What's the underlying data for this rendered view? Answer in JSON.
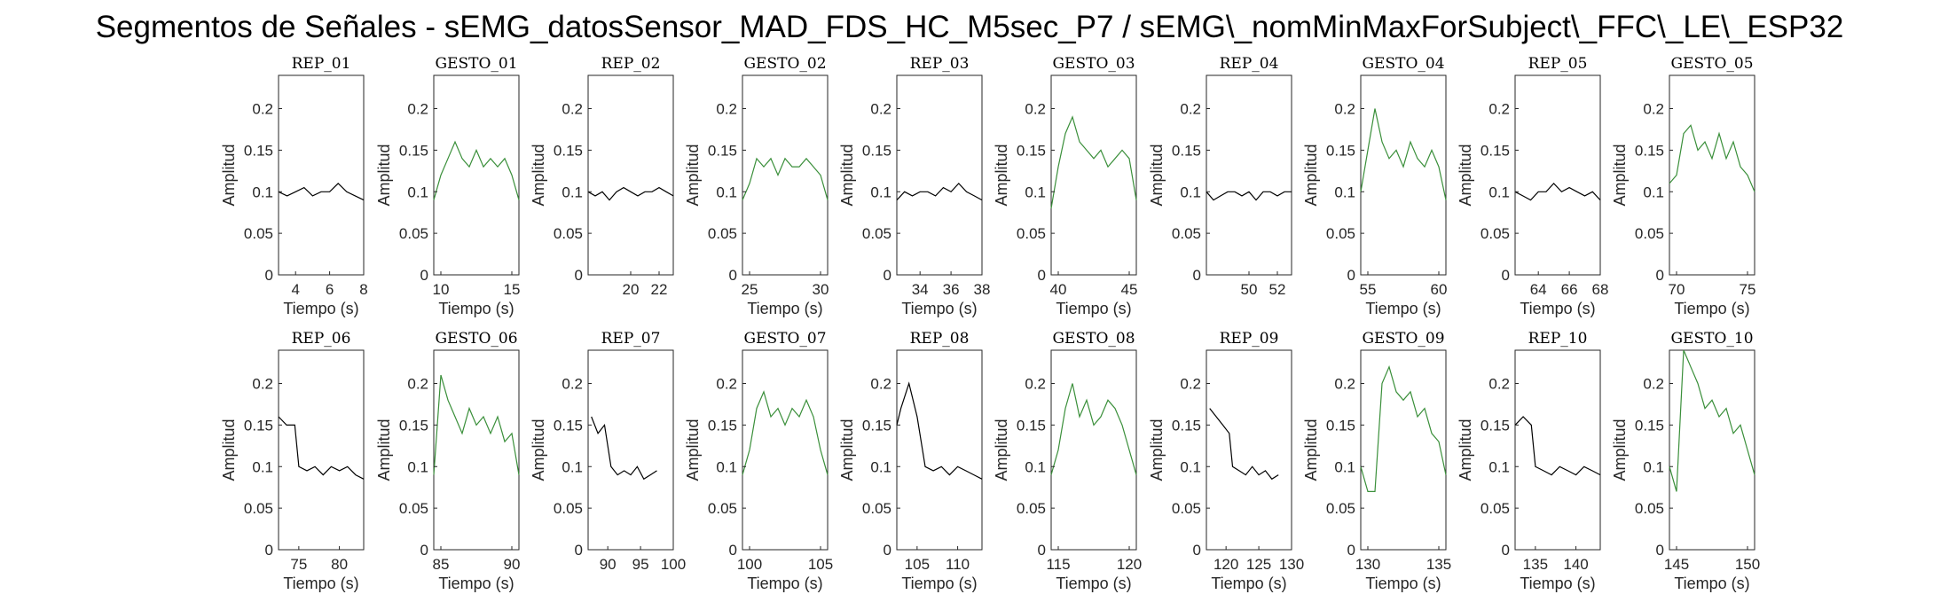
{
  "figure": {
    "title": "Segmentos de Señales - sEMG_datosSensor_MAD_FDS_HC_M5sec_P7 / sEMG\\_nomMinMaxForSubject\\_FFC\\_LE\\_ESP32"
  },
  "colors": {
    "rep": "#000000",
    "gesto": "#3a8f3a"
  },
  "chart_data": [
    {
      "type": "line",
      "title": "REP_01",
      "xlabel": "Tiempo (s)",
      "ylabel": "Amplitud",
      "xlim": [
        3,
        8
      ],
      "ylim": [
        0,
        0.24
      ],
      "xticks": [
        4,
        6,
        8
      ],
      "yticks": [
        0,
        0.05,
        0.1,
        0.15,
        0.2
      ],
      "series": [
        {
          "color": "#000000",
          "x": [
            3,
            3.5,
            4,
            4.5,
            5,
            5.5,
            6,
            6.5,
            7,
            7.5,
            8
          ],
          "y": [
            0.1,
            0.095,
            0.1,
            0.105,
            0.095,
            0.1,
            0.1,
            0.11,
            0.1,
            0.095,
            0.09
          ]
        }
      ]
    },
    {
      "type": "line",
      "title": "GESTO_01",
      "xlabel": "Tiempo (s)",
      "ylabel": "Amplitud",
      "xlim": [
        9.5,
        15.5
      ],
      "ylim": [
        0,
        0.24
      ],
      "xticks": [
        10,
        15
      ],
      "yticks": [
        0,
        0.05,
        0.1,
        0.15,
        0.2
      ],
      "series": [
        {
          "color": "#3a8f3a",
          "x": [
            9.5,
            10,
            10.5,
            11,
            11.5,
            12,
            12.5,
            13,
            13.5,
            14,
            14.5,
            15,
            15.5
          ],
          "y": [
            0.09,
            0.12,
            0.14,
            0.16,
            0.14,
            0.13,
            0.15,
            0.13,
            0.14,
            0.13,
            0.14,
            0.12,
            0.09
          ]
        }
      ]
    },
    {
      "type": "line",
      "title": "REP_02",
      "xlabel": "",
      "ylabel": "Amplitud",
      "xlim": [
        17,
        23
      ],
      "ylim": [
        0,
        0.24
      ],
      "xticks": [
        20,
        22
      ],
      "yticks": [
        0,
        0.05,
        0.1,
        0.15,
        0.2
      ],
      "series": [
        {
          "color": "#000000",
          "x": [
            17,
            17.5,
            18,
            18.5,
            19,
            19.5,
            20,
            20.5,
            21,
            21.5,
            22,
            22.5,
            23
          ],
          "y": [
            0.1,
            0.095,
            0.1,
            0.09,
            0.1,
            0.105,
            0.1,
            0.095,
            0.1,
            0.1,
            0.105,
            0.1,
            0.095
          ]
        }
      ]
    },
    {
      "type": "line",
      "title": "GESTO_02",
      "xlabel": "Tiempo (s)",
      "ylabel": "Amplitud",
      "xlim": [
        24.5,
        30.5
      ],
      "ylim": [
        0,
        0.24
      ],
      "xticks": [
        25,
        30
      ],
      "yticks": [
        0,
        0.05,
        0.1,
        0.15,
        0.2
      ],
      "series": [
        {
          "color": "#3a8f3a",
          "x": [
            24.5,
            25,
            25.5,
            26,
            26.5,
            27,
            27.5,
            28,
            28.5,
            29,
            29.5,
            30,
            30.5
          ],
          "y": [
            0.09,
            0.11,
            0.14,
            0.13,
            0.14,
            0.12,
            0.14,
            0.13,
            0.13,
            0.14,
            0.13,
            0.12,
            0.09
          ]
        }
      ]
    },
    {
      "type": "line",
      "title": "REP_03",
      "xlabel": "Tiempo (s)",
      "ylabel": "Amplitud",
      "xlim": [
        32.5,
        38
      ],
      "ylim": [
        0,
        0.24
      ],
      "xticks": [
        34,
        36,
        38
      ],
      "yticks": [
        0,
        0.05,
        0.1,
        0.15,
        0.2
      ],
      "series": [
        {
          "color": "#000000",
          "x": [
            32.5,
            33,
            33.5,
            34,
            34.5,
            35,
            35.5,
            36,
            36.5,
            37,
            37.5,
            38
          ],
          "y": [
            0.09,
            0.1,
            0.095,
            0.1,
            0.1,
            0.095,
            0.105,
            0.1,
            0.11,
            0.1,
            0.095,
            0.09
          ]
        }
      ]
    },
    {
      "type": "line",
      "title": "GESTO_03",
      "xlabel": "Tiempo (s)",
      "ylabel": "Amplitud",
      "xlim": [
        39.5,
        45.5
      ],
      "ylim": [
        0,
        0.24
      ],
      "xticks": [
        40,
        45
      ],
      "yticks": [
        0,
        0.05,
        0.1,
        0.15,
        0.2
      ],
      "series": [
        {
          "color": "#3a8f3a",
          "x": [
            39.5,
            40,
            40.5,
            41,
            41.5,
            42,
            42.5,
            43,
            43.5,
            44,
            44.5,
            45,
            45.5
          ],
          "y": [
            0.08,
            0.13,
            0.17,
            0.19,
            0.16,
            0.15,
            0.14,
            0.15,
            0.13,
            0.14,
            0.15,
            0.14,
            0.09
          ]
        }
      ]
    },
    {
      "type": "line",
      "title": "REP_04",
      "xlabel": "",
      "ylabel": "Amplitud",
      "xlim": [
        47,
        53
      ],
      "ylim": [
        0,
        0.24
      ],
      "xticks": [
        50,
        52
      ],
      "yticks": [
        0,
        0.05,
        0.1,
        0.15,
        0.2
      ],
      "series": [
        {
          "color": "#000000",
          "x": [
            47,
            47.5,
            48,
            48.5,
            49,
            49.5,
            50,
            50.5,
            51,
            51.5,
            52,
            52.5,
            53
          ],
          "y": [
            0.1,
            0.09,
            0.095,
            0.1,
            0.1,
            0.095,
            0.1,
            0.09,
            0.1,
            0.1,
            0.095,
            0.1,
            0.1
          ]
        }
      ]
    },
    {
      "type": "line",
      "title": "GESTO_04",
      "xlabel": "Tiempo (s)",
      "ylabel": "Amplitud",
      "xlim": [
        54.5,
        60.5
      ],
      "ylim": [
        0,
        0.24
      ],
      "xticks": [
        55,
        60
      ],
      "yticks": [
        0,
        0.05,
        0.1,
        0.15,
        0.2
      ],
      "series": [
        {
          "color": "#3a8f3a",
          "x": [
            54.5,
            55,
            55.5,
            56,
            56.5,
            57,
            57.5,
            58,
            58.5,
            59,
            59.5,
            60,
            60.5
          ],
          "y": [
            0.1,
            0.15,
            0.2,
            0.16,
            0.14,
            0.15,
            0.13,
            0.16,
            0.14,
            0.13,
            0.15,
            0.13,
            0.09
          ]
        }
      ]
    },
    {
      "type": "line",
      "title": "REP_05",
      "xlabel": "Tiempo (s)",
      "ylabel": "Amplitud",
      "xlim": [
        62.5,
        68
      ],
      "ylim": [
        0,
        0.24
      ],
      "xticks": [
        64,
        66,
        68
      ],
      "yticks": [
        0,
        0.05,
        0.1,
        0.15,
        0.2
      ],
      "series": [
        {
          "color": "#000000",
          "x": [
            62.5,
            63,
            63.5,
            64,
            64.5,
            65,
            65.5,
            66,
            66.5,
            67,
            67.5,
            68
          ],
          "y": [
            0.1,
            0.095,
            0.09,
            0.1,
            0.1,
            0.11,
            0.1,
            0.105,
            0.1,
            0.095,
            0.1,
            0.09
          ]
        }
      ]
    },
    {
      "type": "line",
      "title": "GESTO_05",
      "xlabel": "Tiempo (s)",
      "ylabel": "Amplitud",
      "xlim": [
        69.5,
        75.5
      ],
      "ylim": [
        0,
        0.24
      ],
      "xticks": [
        70,
        75
      ],
      "yticks": [
        0,
        0.05,
        0.1,
        0.15,
        0.2
      ],
      "series": [
        {
          "color": "#3a8f3a",
          "x": [
            69.5,
            70,
            70.5,
            71,
            71.5,
            72,
            72.5,
            73,
            73.5,
            74,
            74.5,
            75,
            75.5
          ],
          "y": [
            0.11,
            0.12,
            0.17,
            0.18,
            0.15,
            0.16,
            0.14,
            0.17,
            0.14,
            0.16,
            0.13,
            0.12,
            0.1
          ]
        }
      ]
    },
    {
      "type": "line",
      "title": "REP_06",
      "xlabel": "Tiempo (s)",
      "ylabel": "Amplitud",
      "xlim": [
        72.5,
        83
      ],
      "ylim": [
        0,
        0.24
      ],
      "xticks": [
        75,
        80
      ],
      "yticks": [
        0,
        0.05,
        0.1,
        0.15,
        0.2
      ],
      "series": [
        {
          "color": "#000000",
          "x": [
            72.5,
            73.5,
            74.5,
            75,
            76,
            77,
            78,
            79,
            80,
            81,
            82,
            83
          ],
          "y": [
            0.16,
            0.15,
            0.15,
            0.1,
            0.095,
            0.1,
            0.09,
            0.1,
            0.095,
            0.1,
            0.09,
            0.085
          ]
        }
      ]
    },
    {
      "type": "line",
      "title": "GESTO_06",
      "xlabel": "Tiempo (s)",
      "ylabel": "Amplitud",
      "xlim": [
        84.5,
        90.5
      ],
      "ylim": [
        0,
        0.24
      ],
      "xticks": [
        85,
        90
      ],
      "yticks": [
        0,
        0.05,
        0.1,
        0.15,
        0.2
      ],
      "series": [
        {
          "color": "#3a8f3a",
          "x": [
            84.5,
            85,
            85.5,
            86,
            86.5,
            87,
            87.5,
            88,
            88.5,
            89,
            89.5,
            90,
            90.5
          ],
          "y": [
            0.09,
            0.21,
            0.18,
            0.16,
            0.14,
            0.17,
            0.15,
            0.16,
            0.14,
            0.16,
            0.13,
            0.14,
            0.09
          ]
        }
      ]
    },
    {
      "type": "line",
      "title": "REP_07",
      "xlabel": "",
      "ylabel": "Amplitud",
      "xlim": [
        87,
        100
      ],
      "ylim": [
        0,
        0.24
      ],
      "xticks": [
        90,
        95,
        100
      ],
      "yticks": [
        0,
        0.05,
        0.1,
        0.15,
        0.2
      ],
      "series": [
        {
          "color": "#000000",
          "x": [
            87.5,
            88.5,
            89.5,
            90.5,
            91.5,
            92.5,
            93.5,
            94.5,
            95.5,
            96.5,
            97.5
          ],
          "y": [
            0.16,
            0.14,
            0.15,
            0.1,
            0.09,
            0.095,
            0.09,
            0.1,
            0.085,
            0.09,
            0.095
          ]
        }
      ]
    },
    {
      "type": "line",
      "title": "GESTO_07",
      "xlabel": "Tiempo (s)",
      "ylabel": "Amplitud",
      "xlim": [
        99.5,
        105.5
      ],
      "ylim": [
        0,
        0.24
      ],
      "xticks": [
        100,
        105
      ],
      "yticks": [
        0,
        0.05,
        0.1,
        0.15,
        0.2
      ],
      "series": [
        {
          "color": "#3a8f3a",
          "x": [
            99.5,
            100,
            100.5,
            101,
            101.5,
            102,
            102.5,
            103,
            103.5,
            104,
            104.5,
            105,
            105.5
          ],
          "y": [
            0.09,
            0.12,
            0.17,
            0.19,
            0.16,
            0.17,
            0.15,
            0.17,
            0.16,
            0.18,
            0.16,
            0.12,
            0.09
          ]
        }
      ]
    },
    {
      "type": "line",
      "title": "REP_08",
      "xlabel": "Tiempo (s)",
      "ylabel": "Amplitud",
      "xlim": [
        102.5,
        113
      ],
      "ylim": [
        0,
        0.24
      ],
      "xticks": [
        105,
        110
      ],
      "yticks": [
        0,
        0.05,
        0.1,
        0.15,
        0.2
      ],
      "series": [
        {
          "color": "#000000",
          "x": [
            102.5,
            103,
            104,
            105,
            106,
            107,
            108,
            109,
            110,
            111,
            112,
            113
          ],
          "y": [
            0.15,
            0.17,
            0.2,
            0.16,
            0.1,
            0.095,
            0.1,
            0.09,
            0.1,
            0.095,
            0.09,
            0.085
          ]
        }
      ]
    },
    {
      "type": "line",
      "title": "GESTO_08",
      "xlabel": "Tiempo (s)",
      "ylabel": "Amplitud",
      "xlim": [
        114.5,
        120.5
      ],
      "ylim": [
        0,
        0.24
      ],
      "xticks": [
        115,
        120
      ],
      "yticks": [
        0,
        0.05,
        0.1,
        0.15,
        0.2
      ],
      "series": [
        {
          "color": "#3a8f3a",
          "x": [
            114.5,
            115,
            115.5,
            116,
            116.5,
            117,
            117.5,
            118,
            118.5,
            119,
            119.5,
            120,
            120.5
          ],
          "y": [
            0.09,
            0.12,
            0.17,
            0.2,
            0.16,
            0.18,
            0.15,
            0.16,
            0.18,
            0.17,
            0.15,
            0.12,
            0.09
          ]
        }
      ]
    },
    {
      "type": "line",
      "title": "REP_09",
      "xlabel": "Tiempo (s)",
      "ylabel": "Amplitud",
      "xlim": [
        117,
        130
      ],
      "ylim": [
        0,
        0.24
      ],
      "xticks": [
        120,
        125,
        130
      ],
      "yticks": [
        0,
        0.05,
        0.1,
        0.15,
        0.2
      ],
      "series": [
        {
          "color": "#000000",
          "x": [
            117.5,
            118.5,
            119.5,
            120.5,
            121,
            122,
            123,
            124,
            125,
            126,
            127,
            128
          ],
          "y": [
            0.17,
            0.16,
            0.15,
            0.14,
            0.1,
            0.095,
            0.09,
            0.1,
            0.09,
            0.095,
            0.085,
            0.09
          ]
        }
      ]
    },
    {
      "type": "line",
      "title": "GESTO_09",
      "xlabel": "Tiempo (s)",
      "ylabel": "Amplitud",
      "xlim": [
        129.5,
        135.5
      ],
      "ylim": [
        0,
        0.24
      ],
      "xticks": [
        130,
        135
      ],
      "yticks": [
        0,
        0.05,
        0.1,
        0.15,
        0.2
      ],
      "series": [
        {
          "color": "#3a8f3a",
          "x": [
            129.5,
            130,
            130.5,
            131,
            131.5,
            132,
            132.5,
            133,
            133.5,
            134,
            134.5,
            135,
            135.5
          ],
          "y": [
            0.1,
            0.07,
            0.07,
            0.2,
            0.22,
            0.19,
            0.18,
            0.19,
            0.16,
            0.17,
            0.14,
            0.13,
            0.09
          ]
        }
      ]
    },
    {
      "type": "line",
      "title": "REP_10",
      "xlabel": "Tiempo (s)",
      "ylabel": "Amplitud",
      "xlim": [
        132.5,
        143
      ],
      "ylim": [
        0,
        0.24
      ],
      "xticks": [
        135,
        140
      ],
      "yticks": [
        0,
        0.05,
        0.1,
        0.15,
        0.2
      ],
      "series": [
        {
          "color": "#000000",
          "x": [
            132.5,
            133.5,
            134.5,
            135,
            136,
            137,
            138,
            139,
            140,
            141,
            142,
            143
          ],
          "y": [
            0.15,
            0.16,
            0.15,
            0.1,
            0.095,
            0.09,
            0.1,
            0.095,
            0.09,
            0.1,
            0.095,
            0.09
          ]
        }
      ]
    },
    {
      "type": "line",
      "title": "GESTO_10",
      "xlabel": "Tiempo (s)",
      "ylabel": "Amplitud",
      "xlim": [
        144.5,
        150.5
      ],
      "ylim": [
        0,
        0.24
      ],
      "xticks": [
        145,
        150
      ],
      "yticks": [
        0,
        0.05,
        0.1,
        0.15,
        0.2
      ],
      "series": [
        {
          "color": "#3a8f3a",
          "x": [
            144.5,
            145,
            145.5,
            146,
            146.5,
            147,
            147.5,
            148,
            148.5,
            149,
            149.5,
            150,
            150.5
          ],
          "y": [
            0.1,
            0.07,
            0.24,
            0.22,
            0.2,
            0.17,
            0.18,
            0.16,
            0.17,
            0.14,
            0.15,
            0.12,
            0.09
          ]
        }
      ]
    }
  ]
}
